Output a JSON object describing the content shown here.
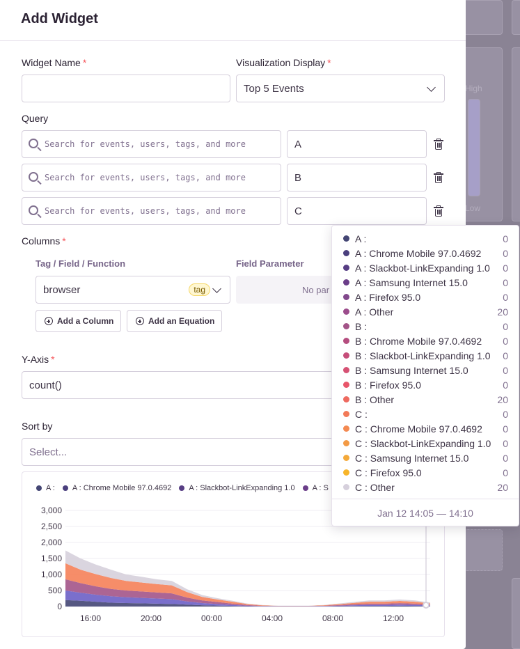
{
  "modal": {
    "title": "Add Widget"
  },
  "widget_name": {
    "label": "Widget Name",
    "value": "",
    "placeholder": ""
  },
  "visualization": {
    "label": "Visualization Display",
    "value": "Top 5 Events"
  },
  "query": {
    "label": "Query",
    "search_placeholder": "Search for events, users, tags, and more",
    "rows": [
      {
        "legend": "A"
      },
      {
        "legend": "B"
      },
      {
        "legend": "C"
      }
    ]
  },
  "columns": {
    "label": "Columns",
    "tag_field_header": "Tag / Field / Function",
    "field_param_header": "Field Parameter",
    "field_value": "browser",
    "tag_label": "tag",
    "param_placeholder": "No par",
    "add_column": "Add a Column",
    "add_equation": "Add an Equation"
  },
  "y_axis": {
    "label": "Y-Axis",
    "value": "count()"
  },
  "sort_by": {
    "label": "Sort by",
    "placeholder": "Select..."
  },
  "background": {
    "high_label": "High",
    "low_label": "Low"
  },
  "chart_data": {
    "type": "area",
    "legend": [
      "A :",
      "A : Chrome Mobile 97.0.4692",
      "A : Slackbot-LinkExpanding 1.0",
      "A : S"
    ],
    "y_ticks": [
      "3,000",
      "2,500",
      "2,000",
      "1,500",
      "1,000",
      "500",
      "0"
    ],
    "x_ticks": [
      "16:00",
      "20:00",
      "00:00",
      "04:00",
      "08:00",
      "12:00"
    ],
    "ylim": [
      0,
      3000
    ],
    "x": [
      "14:30",
      "15:00",
      "16:00",
      "17:00",
      "18:00",
      "19:00",
      "20:00",
      "21:00",
      "22:00",
      "23:00",
      "00:00",
      "01:00",
      "02:00",
      "03:00",
      "04:00",
      "05:00",
      "06:00",
      "07:00",
      "08:00",
      "09:00",
      "10:00",
      "11:00",
      "12:00",
      "13:00",
      "14:00"
    ],
    "series": [
      {
        "color": "#444674",
        "values": [
          200,
          180,
          150,
          120,
          110,
          100,
          90,
          80,
          60,
          40,
          30,
          20,
          10,
          5,
          5,
          5,
          5,
          5,
          10,
          15,
          20,
          20,
          25,
          20,
          15
        ]
      },
      {
        "color": "#6c5fc7",
        "values": [
          300,
          250,
          220,
          200,
          180,
          170,
          160,
          150,
          100,
          70,
          50,
          30,
          15,
          8,
          5,
          5,
          5,
          10,
          15,
          25,
          30,
          30,
          35,
          30,
          20
        ]
      },
      {
        "color": "#a35488",
        "values": [
          350,
          300,
          260,
          230,
          210,
          200,
          190,
          180,
          120,
          80,
          60,
          40,
          20,
          10,
          5,
          5,
          5,
          10,
          20,
          30,
          40,
          40,
          45,
          40,
          25
        ]
      },
      {
        "color": "#f58159",
        "values": [
          500,
          420,
          380,
          340,
          300,
          280,
          260,
          250,
          170,
          110,
          80,
          60,
          30,
          15,
          8,
          8,
          8,
          15,
          30,
          45,
          60,
          60,
          70,
          60,
          40
        ]
      },
      {
        "color": "#d6d0dc",
        "values": [
          400,
          350,
          300,
          260,
          200,
          180,
          150,
          140,
          90,
          60,
          40,
          30,
          15,
          8,
          5,
          5,
          5,
          10,
          20,
          30,
          40,
          40,
          45,
          40,
          25
        ]
      }
    ]
  },
  "tooltip": {
    "rows": [
      {
        "label": "A :",
        "value": "0",
        "color": "#444674"
      },
      {
        "label": "A : Chrome Mobile 97.0.4692",
        "value": "0",
        "color": "#4a3f7d"
      },
      {
        "label": "A : Slackbot-LinkExpanding 1.0",
        "value": "0",
        "color": "#573e84"
      },
      {
        "label": "A : Samsung Internet 15.0",
        "value": "0",
        "color": "#6b3e89"
      },
      {
        "label": "A : Firefox 95.0",
        "value": "0",
        "color": "#82498c"
      },
      {
        "label": "A : Other",
        "value": "20",
        "color": "#9c4c8c"
      },
      {
        "label": "B :",
        "value": "0",
        "color": "#a35488"
      },
      {
        "label": "B : Chrome Mobile 97.0.4692",
        "value": "0",
        "color": "#b54d7f"
      },
      {
        "label": "B : Slackbot-LinkExpanding 1.0",
        "value": "0",
        "color": "#c64e7a"
      },
      {
        "label": "B : Samsung Internet 15.0",
        "value": "0",
        "color": "#d65174"
      },
      {
        "label": "B : Firefox 95.0",
        "value": "0",
        "color": "#e8566a"
      },
      {
        "label": "B : Other",
        "value": "20",
        "color": "#ee6a60"
      },
      {
        "label": "C :",
        "value": "0",
        "color": "#f27a58"
      },
      {
        "label": "C : Chrome Mobile 97.0.4692",
        "value": "0",
        "color": "#f48a52"
      },
      {
        "label": "C : Slackbot-LinkExpanding 1.0",
        "value": "0",
        "color": "#f39a45"
      },
      {
        "label": "C : Samsung Internet 15.0",
        "value": "0",
        "color": "#f4a93a"
      },
      {
        "label": "C : Firefox 95.0",
        "value": "0",
        "color": "#f7b52a"
      },
      {
        "label": "C : Other",
        "value": "20",
        "color": "#d6d0dc"
      }
    ],
    "footer": "Jan 12 14:05 — 14:10"
  }
}
